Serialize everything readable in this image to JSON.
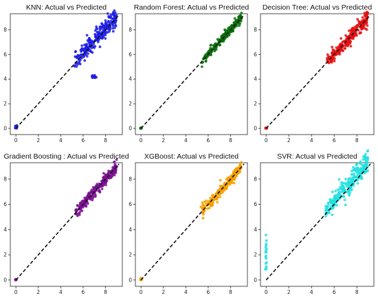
{
  "chart_data": [
    {
      "type": "scatter",
      "title": "KNN: Actual vs Predicted",
      "xlim": [
        -0.5,
        9.5
      ],
      "ylim": [
        -0.5,
        9.3
      ],
      "xticks": [
        0,
        2,
        4,
        6,
        8
      ],
      "yticks": [
        0,
        2,
        4,
        6,
        8
      ],
      "color": "#1f1fe6",
      "reference_line": {
        "from": [
          0,
          0
        ],
        "to": [
          9.2,
          9.2
        ],
        "style": "dashed"
      },
      "clusters": [
        {
          "x_range": [
            5.2,
            9.0
          ],
          "y_center_offset": 0.15,
          "spread": 0.45
        },
        {
          "x_range": [
            6.8,
            7.2
          ],
          "y_range": [
            4.1,
            4.3
          ]
        },
        {
          "x_range": [
            -0.1,
            0.1
          ],
          "y_range": [
            0.0,
            0.25
          ]
        }
      ]
    },
    {
      "type": "scatter",
      "title": "Random Forest: Actual vs Predicted",
      "xlim": [
        -0.5,
        9.5
      ],
      "ylim": [
        -0.5,
        9.3
      ],
      "xticks": [
        0,
        2,
        4,
        6,
        8
      ],
      "yticks": [
        0,
        2,
        4,
        6,
        8
      ],
      "color": "#0a6e0a",
      "reference_line": {
        "from": [
          0,
          0
        ],
        "to": [
          9.2,
          9.2
        ],
        "style": "dashed"
      },
      "clusters": [
        {
          "x_range": [
            5.3,
            9.0
          ],
          "y_center_offset": 0.0,
          "spread": 0.22
        },
        {
          "x_range": [
            -0.05,
            0.05
          ],
          "y_range": [
            0.0,
            0.05
          ]
        }
      ]
    },
    {
      "type": "scatter",
      "title": "Decision Tree: Actual vs Predicted",
      "xlim": [
        -0.5,
        9.5
      ],
      "ylim": [
        -0.5,
        9.3
      ],
      "xticks": [
        0,
        2,
        4,
        6,
        8
      ],
      "yticks": [
        0,
        2,
        4,
        6,
        8
      ],
      "color": "#e61010",
      "reference_line": {
        "from": [
          0,
          0
        ],
        "to": [
          9.2,
          9.2
        ],
        "style": "dashed"
      },
      "clusters": [
        {
          "x_range": [
            5.3,
            9.0
          ],
          "y_center_offset": 0.0,
          "spread": 0.4
        },
        {
          "x_range": [
            -0.05,
            0.05
          ],
          "y_range": [
            0.0,
            0.05
          ]
        }
      ]
    },
    {
      "type": "scatter",
      "title": "Gradient Boosting : Actual vs Predicted",
      "xlim": [
        -0.5,
        9.5
      ],
      "ylim": [
        -0.5,
        9.3
      ],
      "xticks": [
        0,
        2,
        4,
        6,
        8
      ],
      "yticks": [
        0,
        2,
        4,
        6,
        8
      ],
      "color": "#7a1090",
      "reference_line": {
        "from": [
          0,
          0
        ],
        "to": [
          9.2,
          9.2
        ],
        "style": "dashed"
      },
      "clusters": [
        {
          "x_range": [
            5.3,
            9.0
          ],
          "y_center_offset": 0.0,
          "spread": 0.28
        },
        {
          "x_range": [
            -0.05,
            0.05
          ],
          "y_range": [
            0.0,
            0.05
          ]
        }
      ]
    },
    {
      "type": "scatter",
      "title": "XGBoost: Actual vs Predicted",
      "xlim": [
        -0.5,
        9.5
      ],
      "ylim": [
        -0.5,
        9.3
      ],
      "xticks": [
        0,
        2,
        4,
        6,
        8
      ],
      "yticks": [
        0,
        2,
        4,
        6,
        8
      ],
      "color": "#f5a000",
      "reference_line": {
        "from": [
          0,
          0
        ],
        "to": [
          9.2,
          9.2
        ],
        "style": "dashed"
      },
      "clusters": [
        {
          "x_range": [
            5.3,
            9.0
          ],
          "y_center_offset": 0.0,
          "spread": 0.25
        },
        {
          "x_range": [
            -0.05,
            0.05
          ],
          "y_range": [
            0.0,
            0.15
          ]
        }
      ]
    },
    {
      "type": "scatter",
      "title": "SVR: Actual vs Predicted",
      "xlim": [
        -0.5,
        9.5
      ],
      "ylim": [
        -0.5,
        9.3
      ],
      "xticks": [
        0,
        2,
        4,
        6,
        8
      ],
      "yticks": [
        0,
        2,
        4,
        6,
        8
      ],
      "color": "#22e0e0",
      "reference_line": {
        "from": [
          0,
          0
        ],
        "to": [
          9.2,
          9.2
        ],
        "style": "dashed"
      },
      "clusters": [
        {
          "x_range": [
            5.2,
            9.0
          ],
          "y_center_offset": 0.3,
          "spread": 0.55
        },
        {
          "x_range": [
            -0.05,
            0.05
          ],
          "y_range": [
            0.5,
            3.6
          ]
        }
      ]
    }
  ]
}
